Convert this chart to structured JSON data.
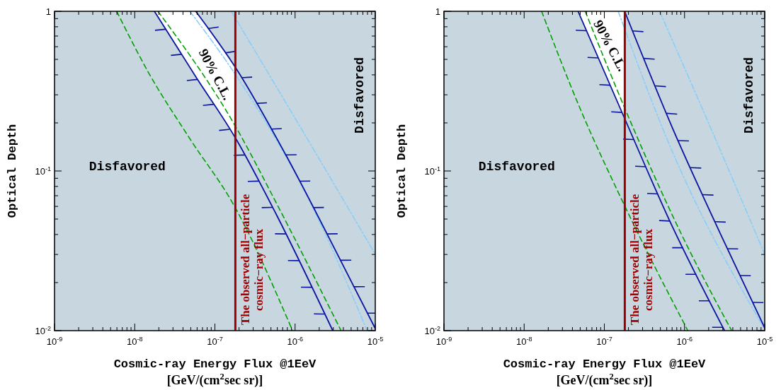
{
  "chart_data": [
    {
      "type": "line",
      "xlabel": "Cosmic-ray Energy Flux @1EeV\n[GeV/(cm$^{2}$sec sr)]",
      "ylabel": "Optical Depth",
      "log": "xy",
      "xlim": [
        1e-09,
        1e-05
      ],
      "ylim": [
        0.01,
        1
      ],
      "xticks": [
        {
          "value": 1e-09,
          "label": "10$^{-9}$"
        },
        {
          "value": 2e-09,
          "label": null
        },
        {
          "value": 3e-09,
          "label": null
        },
        {
          "value": 4e-09,
          "label": null
        },
        {
          "value": 5e-09,
          "label": null
        },
        {
          "value": 6e-09,
          "label": null
        },
        {
          "value": 7e-09,
          "label": null
        },
        {
          "value": 8e-09,
          "label": null
        },
        {
          "value": 9e-09,
          "label": null
        },
        {
          "value": 1e-08,
          "label": "10$^{-8}$"
        },
        {
          "value": 2e-08,
          "label": null
        },
        {
          "value": 3e-08,
          "label": null
        },
        {
          "value": 4e-08,
          "label": null
        },
        {
          "value": 5e-08,
          "label": null
        },
        {
          "value": 6e-08,
          "label": null
        },
        {
          "value": 7e-08,
          "label": null
        },
        {
          "value": 8e-08,
          "label": null
        },
        {
          "value": 9e-08,
          "label": null
        },
        {
          "value": 1e-07,
          "label": "10$^{-7}$"
        },
        {
          "value": 2e-07,
          "label": null
        },
        {
          "value": 3e-07,
          "label": null
        },
        {
          "value": 4e-07,
          "label": null
        },
        {
          "value": 5e-07,
          "label": null
        },
        {
          "value": 6e-07,
          "label": null
        },
        {
          "value": 7e-07,
          "label": null
        },
        {
          "value": 8e-07,
          "label": null
        },
        {
          "value": 9e-07,
          "label": null
        },
        {
          "value": 1e-06,
          "label": "10$^{-6}$"
        },
        {
          "value": 2e-06,
          "label": null
        },
        {
          "value": 3e-06,
          "label": null
        },
        {
          "value": 4e-06,
          "label": null
        },
        {
          "value": 5e-06,
          "label": null
        },
        {
          "value": 6e-06,
          "label": null
        },
        {
          "value": 7e-06,
          "label": null
        },
        {
          "value": 8e-06,
          "label": null
        },
        {
          "value": 9e-06,
          "label": null
        },
        {
          "value": 1e-05,
          "label": "10$^{-5}$"
        }
      ],
      "yticks": [
        {
          "value": 0.01,
          "label": "10$^{-2}$"
        },
        {
          "value": 0.02,
          "label": null
        },
        {
          "value": 0.03,
          "label": null
        },
        {
          "value": 0.04,
          "label": null
        },
        {
          "value": 0.05,
          "label": null
        },
        {
          "value": 0.06,
          "label": null
        },
        {
          "value": 0.07,
          "label": null
        },
        {
          "value": 0.08,
          "label": null
        },
        {
          "value": 0.09,
          "label": null
        },
        {
          "value": 0.1,
          "label": "10$^{-1}$"
        },
        {
          "value": 0.2,
          "label": null
        },
        {
          "value": 0.3,
          "label": null
        },
        {
          "value": 0.4,
          "label": null
        },
        {
          "value": 0.5,
          "label": null
        },
        {
          "value": 0.6,
          "label": null
        },
        {
          "value": 0.7,
          "label": null
        },
        {
          "value": 0.8,
          "label": null
        },
        {
          "value": 0.9,
          "label": null
        },
        1
      ],
      "bands": [
        {
          "axis": "x",
          "from": 1e-09,
          "to": 1e-05,
          "color": "#c8d6df"
        }
      ],
      "ref_lines": [
        {
          "axis": "x",
          "value": 1.8e-07,
          "label": "The observed all−particle\ncosmic−ray flux",
          "color": "#a00000"
        }
      ],
      "series": [
        {
          "type": "area",
          "color": "#ffffff",
          "x": [
            1.76e-08,
            5.77e-08,
            1.8e-07
          ],
          "values": [
            1,
            1,
            0.44
          ]
        },
        {
          "type": "area",
          "color": "#c8d6df",
          "x": [
            1e-09,
            1.76e-08,
            5.77e-08,
            1.8e-07
          ],
          "values": [
            1,
            1,
            0.39,
            0.159
          ]
        },
        {
          "color": "#00a000",
          "line_style": "dashed",
          "x": [
            5.96e-09,
            1.44e-08,
            4.88e-08,
            1.71e-07,
            9.3e-07
          ],
          "values": [
            1,
            0.425,
            0.159,
            0.0615,
            0.01
          ]
        },
        {
          "color": "#0a14a0",
          "line_style": "solid",
          "x": [
            1.76e-08,
            5.77e-08,
            1.83e-07,
            5.8e-07,
            2.95e-06
          ],
          "values": [
            1,
            0.39,
            0.159,
            0.0537,
            0.01
          ]
        },
        {
          "color": "#00a000",
          "line_style": "dashed",
          "x": [
            1.95e-08,
            1.83e-07,
            6.2e-07,
            3.74e-06
          ],
          "values": [
            1,
            0.188,
            0.0594,
            0.01
          ]
        },
        {
          "color": "#87cefa",
          "line_style": "dashdot",
          "x": [
            4.88e-08,
            1.83e-07,
            1.6e-06,
            7.9e-06
          ],
          "values": [
            1,
            0.397,
            0.0615,
            0.01
          ]
        },
        {
          "color": "#0a14a0",
          "line_style": "solid",
          "x": [
            5.77e-08,
            1.83e-07,
            7.6e-07,
            3.74e-06,
            1e-05
          ],
          "values": [
            1,
            0.44,
            0.127,
            0.0272,
            0.0103
          ]
        },
        {
          "color": "#87cefa",
          "line_style": "dashdot",
          "x": [
            1.6e-07,
            1.26e-06,
            1e-05
          ],
          "values": [
            1,
            0.176,
            0.0301
          ]
        }
      ],
      "annotations": [
        "Disfavored",
        "Disfavored",
        "90% C.L."
      ]
    },
    {
      "type": "line",
      "xlabel": "Cosmic-ray Energy Flux @1EeV\n[GeV/(cm$^{2}$sec sr)]",
      "ylabel": "Optical Depth",
      "log": "xy",
      "xlim": [
        1e-09,
        1e-05
      ],
      "ylim": [
        0.01,
        1
      ],
      "xticks": [
        {
          "value": 1e-09,
          "label": "10$^{-9}$"
        },
        {
          "value": 2e-09,
          "label": null
        },
        {
          "value": 3e-09,
          "label": null
        },
        {
          "value": 4e-09,
          "label": null
        },
        {
          "value": 5e-09,
          "label": null
        },
        {
          "value": 6e-09,
          "label": null
        },
        {
          "value": 7e-09,
          "label": null
        },
        {
          "value": 8e-09,
          "label": null
        },
        {
          "value": 9e-09,
          "label": null
        },
        {
          "value": 1e-08,
          "label": "10$^{-8}$"
        },
        {
          "value": 2e-08,
          "label": null
        },
        {
          "value": 3e-08,
          "label": null
        },
        {
          "value": 4e-08,
          "label": null
        },
        {
          "value": 5e-08,
          "label": null
        },
        {
          "value": 6e-08,
          "label": null
        },
        {
          "value": 7e-08,
          "label": null
        },
        {
          "value": 8e-08,
          "label": null
        },
        {
          "value": 9e-08,
          "label": null
        },
        {
          "value": 1e-07,
          "label": "10$^{-7}$"
        },
        {
          "value": 2e-07,
          "label": null
        },
        {
          "value": 3e-07,
          "label": null
        },
        {
          "value": 4e-07,
          "label": null
        },
        {
          "value": 5e-07,
          "label": null
        },
        {
          "value": 6e-07,
          "label": null
        },
        {
          "value": 7e-07,
          "label": null
        },
        {
          "value": 8e-07,
          "label": null
        },
        {
          "value": 9e-07,
          "label": null
        },
        {
          "value": 1e-06,
          "label": "10$^{-6}$"
        },
        {
          "value": 2e-06,
          "label": null
        },
        {
          "value": 3e-06,
          "label": null
        },
        {
          "value": 4e-06,
          "label": null
        },
        {
          "value": 5e-06,
          "label": null
        },
        {
          "value": 6e-06,
          "label": null
        },
        {
          "value": 7e-06,
          "label": null
        },
        {
          "value": 8e-06,
          "label": null
        },
        {
          "value": 9e-06,
          "label": null
        },
        {
          "value": 1e-05,
          "label": "10$^{-5}$"
        }
      ],
      "yticks": [
        {
          "value": 0.01,
          "label": "10$^{-2}$"
        },
        {
          "value": 0.02,
          "label": null
        },
        {
          "value": 0.03,
          "label": null
        },
        {
          "value": 0.04,
          "label": null
        },
        {
          "value": 0.05,
          "label": null
        },
        {
          "value": 0.06,
          "label": null
        },
        {
          "value": 0.07,
          "label": null
        },
        {
          "value": 0.08,
          "label": null
        },
        {
          "value": 0.09,
          "label": null
        },
        {
          "value": 0.1,
          "label": "10$^{-1}$"
        },
        {
          "value": 0.2,
          "label": null
        },
        {
          "value": 0.3,
          "label": null
        },
        {
          "value": 0.4,
          "label": null
        },
        {
          "value": 0.5,
          "label": null
        },
        {
          "value": 0.6,
          "label": null
        },
        {
          "value": 0.7,
          "label": null
        },
        {
          "value": 0.8,
          "label": null
        },
        {
          "value": 0.9,
          "label": null
        },
        1
      ],
      "bands": [
        {
          "axis": "x",
          "from": 1e-09,
          "to": 1e-05,
          "color": "#c8d6df"
        }
      ],
      "ref_lines": [
        {
          "axis": "x",
          "value": 1.8e-07,
          "label": "The observed all−particle\ncosmic−ray flux",
          "color": "#a00000"
        }
      ],
      "series": [
        {
          "type": "area",
          "color": "#ffffff",
          "x": [
            4.7e-08,
            1.8e-07
          ],
          "values": [
            1,
            1
          ]
        },
        {
          "type": "area",
          "color": "#c8d6df",
          "x": [
            1e-09,
            4.7e-08,
            1.8e-07
          ],
          "values": [
            1,
            1,
            0.212
          ]
        },
        {
          "color": "#00a000",
          "line_style": "dashed",
          "x": [
            1.65e-08,
            4.7e-08,
            1.71e-07,
            1.1e-06
          ],
          "values": [
            1,
            0.264,
            0.0636,
            0.01
          ]
        },
        {
          "color": "#0a14a0",
          "line_style": "solid",
          "x": [
            4.7e-08,
            1.8e-07,
            7.1e-07,
            3.16e-06
          ],
          "values": [
            1,
            0.212,
            0.0445,
            0.01
          ]
        },
        {
          "color": "#00a000",
          "line_style": "dashed",
          "x": [
            5.77e-08,
            1.8e-07,
            9.3e-07,
            3.87e-06
          ],
          "values": [
            1,
            0.247,
            0.0395,
            0.01
          ]
        },
        {
          "color": "#87cefa",
          "line_style": "dashdot",
          "x": [
            1.49e-07,
            6.2e-07,
            1e-05
          ],
          "values": [
            1,
            0.154,
            0.0102
          ]
        },
        {
          "color": "#0a14a0",
          "line_style": "solid",
          "x": [
            1.79e-07,
            7.1e-07,
            2.95e-06,
            1e-05
          ],
          "values": [
            1,
            0.185,
            0.0382,
            0.0104
          ]
        },
        {
          "color": "#87cefa",
          "line_style": "dashdot",
          "x": [
            4.89e-07,
            2.1e-06,
            1e-05
          ],
          "values": [
            1,
            0.188,
            0.0301
          ]
        }
      ],
      "annotations": [
        "Disfavored",
        "Disfavored",
        "90% C.L."
      ]
    }
  ]
}
